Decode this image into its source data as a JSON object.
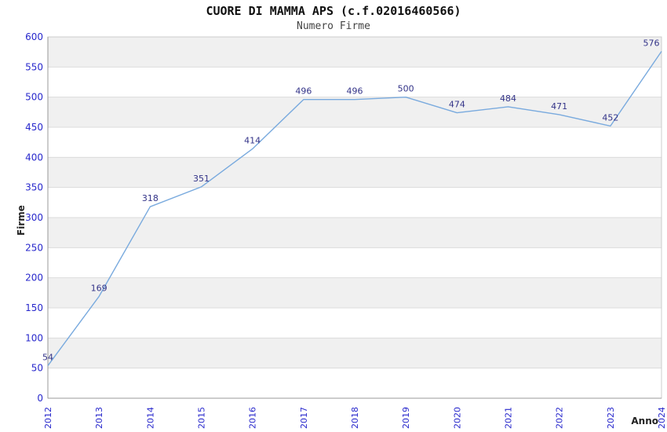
{
  "chart_data": {
    "type": "line",
    "title": "CUORE DI MAMMA APS (c.f.02016460566)",
    "subtitle": "Numero Firme",
    "xlabel": "Anno",
    "ylabel": "Firme",
    "categories": [
      "2012",
      "2013",
      "2014",
      "2015",
      "2016",
      "2017",
      "2018",
      "2019",
      "2020",
      "2021",
      "2022",
      "2023",
      "2024"
    ],
    "series": [
      {
        "name": "Numero Firme",
        "values": [
          54,
          169,
          318,
          351,
          414,
          496,
          496,
          500,
          474,
          484,
          471,
          452,
          576
        ]
      }
    ],
    "ylim": [
      0,
      600
    ],
    "ytick_step": 50,
    "grid": true,
    "legend_position": "none",
    "colors": {
      "line": "#79aade",
      "point_label": "#333388",
      "tick_label": "#2828cc",
      "band": "#f0f0f0",
      "gridline": "#dcdcdc",
      "axis": "#999999",
      "plot_border": "#cccccc",
      "title": "#111111",
      "subtitle": "#444444",
      "axis_title": "#222222",
      "background": "#ffffff"
    }
  }
}
